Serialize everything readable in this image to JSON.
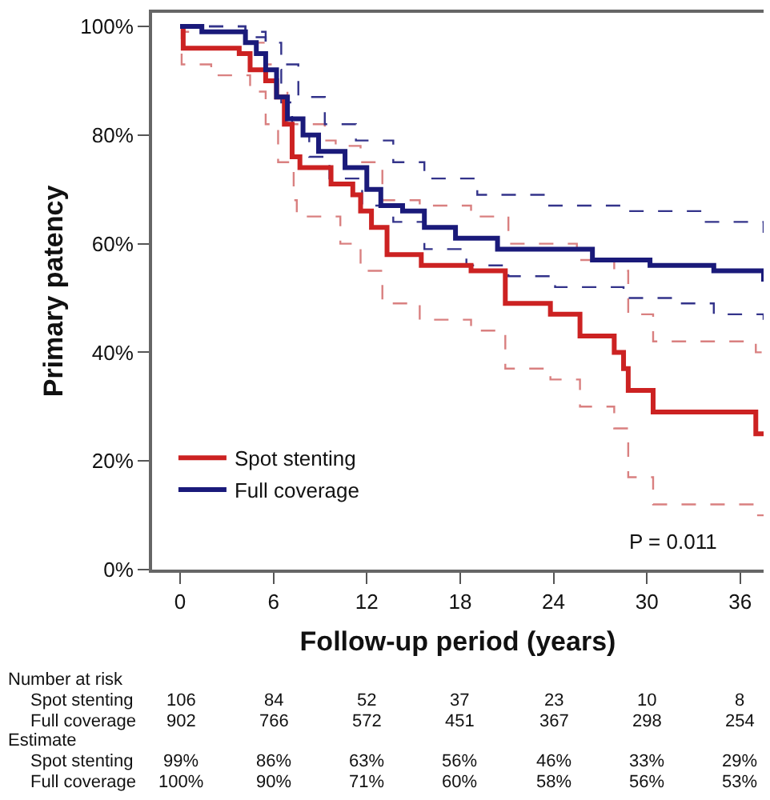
{
  "chart_data": {
    "type": "step",
    "xlabel": "Follow-up period (years)",
    "ylabel": "Primary patency",
    "xlim": [
      -1.8,
      37.5
    ],
    "ylim": [
      0,
      102.5
    ],
    "xticks": [
      0,
      6,
      12,
      18,
      24,
      30,
      36
    ],
    "yticks": [
      {
        "value": 0,
        "label": "0%"
      },
      {
        "value": 20,
        "label": "20%"
      },
      {
        "value": 40,
        "label": "40%"
      },
      {
        "value": 60,
        "label": "60%"
      },
      {
        "value": 80,
        "label": "80%"
      },
      {
        "value": 100,
        "label": "100%"
      }
    ],
    "legend": "bottom left",
    "series": [
      {
        "color": "#d98080",
        "line_style": "dashed",
        "x": [
          0,
          0.2,
          4.2,
          5.5,
          6.2,
          6.9,
          8.3,
          9.3,
          10,
          11,
          11.6,
          13,
          15.4,
          18.7,
          21.1,
          25.5,
          27.9,
          28.8,
          30.4,
          37,
          37.5
        ],
        "values": [
          100,
          99,
          97,
          93,
          88,
          82,
          82,
          79,
          78,
          78,
          75,
          68,
          67,
          65,
          60,
          57,
          55,
          47,
          42,
          40,
          40
        ]
      },
      {
        "color": "#d98080",
        "line_style": "dashed",
        "x": [
          0,
          0.1,
          2,
          4.5,
          5.5,
          6.3,
          7.3,
          7.5,
          10.3,
          11.3,
          11.6,
          13,
          15.4,
          18.7,
          20.9,
          23.8,
          25.7,
          27.9,
          28.8,
          30.4,
          37,
          37.5
        ],
        "values": [
          100,
          93,
          91,
          88,
          82,
          75,
          68,
          65,
          60,
          59,
          55,
          49,
          46,
          44,
          37,
          35,
          30,
          26,
          17,
          12,
          10,
          10
        ]
      },
      {
        "color": "#33338a",
        "line_style": "dashed",
        "x": [
          0,
          4.2,
          5.5,
          6.5,
          7.6,
          9.3,
          11.3,
          13.7,
          15.7,
          19.1,
          23.5,
          28.6,
          33.7,
          37.5
        ],
        "values": [
          100,
          99,
          97,
          93,
          87,
          82,
          79,
          75,
          72,
          69,
          67,
          66,
          64,
          62
        ]
      },
      {
        "color": "#33338a",
        "line_style": "dashed",
        "x": [
          0,
          4.2,
          5.5,
          6.5,
          7.2,
          8.3,
          9.6,
          11.7,
          13.7,
          15.7,
          18.4,
          21.1,
          24.1,
          28.5,
          31.9,
          34.3,
          37.5
        ],
        "values": [
          100,
          98,
          92,
          86,
          80,
          76,
          72,
          67,
          64,
          59,
          56,
          54,
          52,
          50,
          49,
          47,
          46
        ]
      },
      {
        "name": "Spot stenting",
        "color": "#cc2222",
        "x": [
          0,
          0.2,
          3.8,
          4.5,
          5.5,
          6.2,
          6.7,
          7.2,
          7.7,
          9.7,
          11.1,
          11.6,
          12.3,
          13.3,
          15.5,
          18.7,
          20.9,
          23.8,
          25.7,
          27.9,
          28.5,
          28.8,
          30.4,
          37,
          37.5
        ],
        "values": [
          100,
          96,
          95,
          92,
          90,
          87,
          82,
          76,
          74,
          71,
          69,
          66,
          63,
          58,
          56,
          55,
          49,
          47,
          43,
          40,
          37,
          33,
          29,
          25,
          25
        ]
      },
      {
        "name": "Full coverage",
        "color": "#1a1a7a",
        "x": [
          0,
          1.4,
          4.2,
          4.9,
          5.5,
          6.2,
          6.9,
          7.9,
          8.9,
          10.6,
          12,
          12.9,
          14.3,
          15.7,
          17.7,
          20.4,
          23.8,
          26.5,
          30.2,
          34.3,
          37.5
        ],
        "values": [
          100,
          99,
          97,
          95,
          92,
          87,
          83,
          80,
          77,
          74,
          70,
          67,
          66,
          63,
          61,
          59,
          59,
          57,
          56,
          55,
          53
        ]
      }
    ],
    "annotations": [
      "P = 0.011",
      "Number at risk",
      "Spot stenting\t106\t84\t52\t37\t23\t10\t8",
      "Full coverage\t902\t766\t572\t451\t367\t298\t254",
      "Estimate",
      "Spot stenting\t99%\t86%\t63%\t56%\t46%\t33%\t29%",
      "Full coverage\t100%\t90%\t71%\t60%\t58%\t56%\t53%"
    ]
  }
}
